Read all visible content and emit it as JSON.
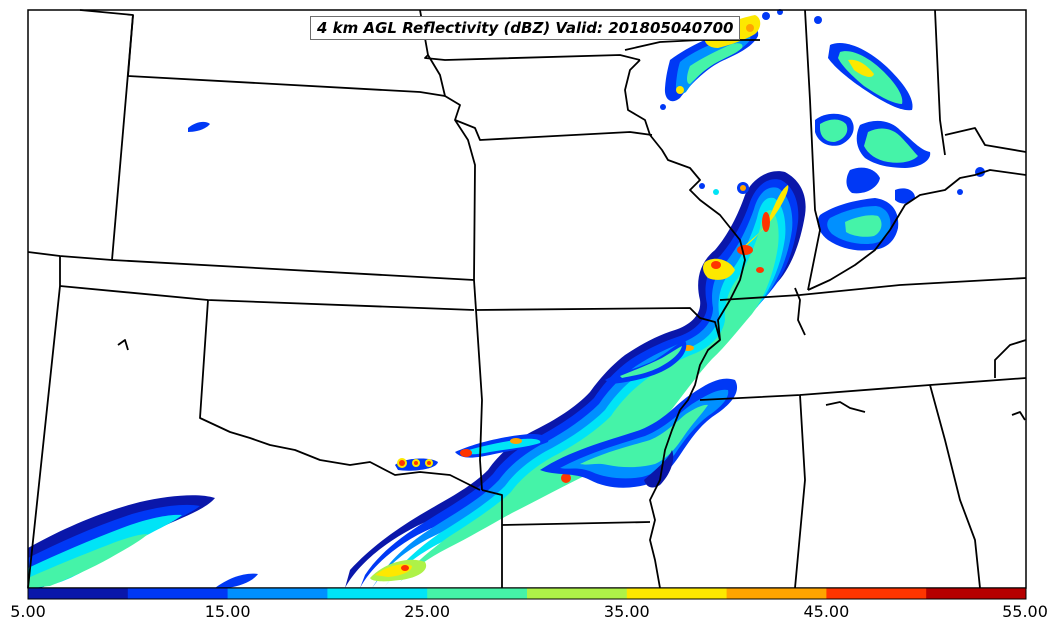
{
  "title": "4 km AGL Reflectivity (dBZ) Valid: 201805040700",
  "colorbar": {
    "tick_labels": [
      "5.00",
      "15.00",
      "25.00",
      "35.00",
      "45.00",
      "55.00"
    ],
    "min": 5,
    "max": 55,
    "colors": [
      "#0a17aa",
      "#0038f5",
      "#0090ff",
      "#00e4f6",
      "#45f3a8",
      "#aef248",
      "#fde800",
      "#ffa400",
      "#ff3500",
      "#b60000"
    ]
  },
  "map_colors": {
    "land": "#ffffff",
    "border": "#000000"
  }
}
